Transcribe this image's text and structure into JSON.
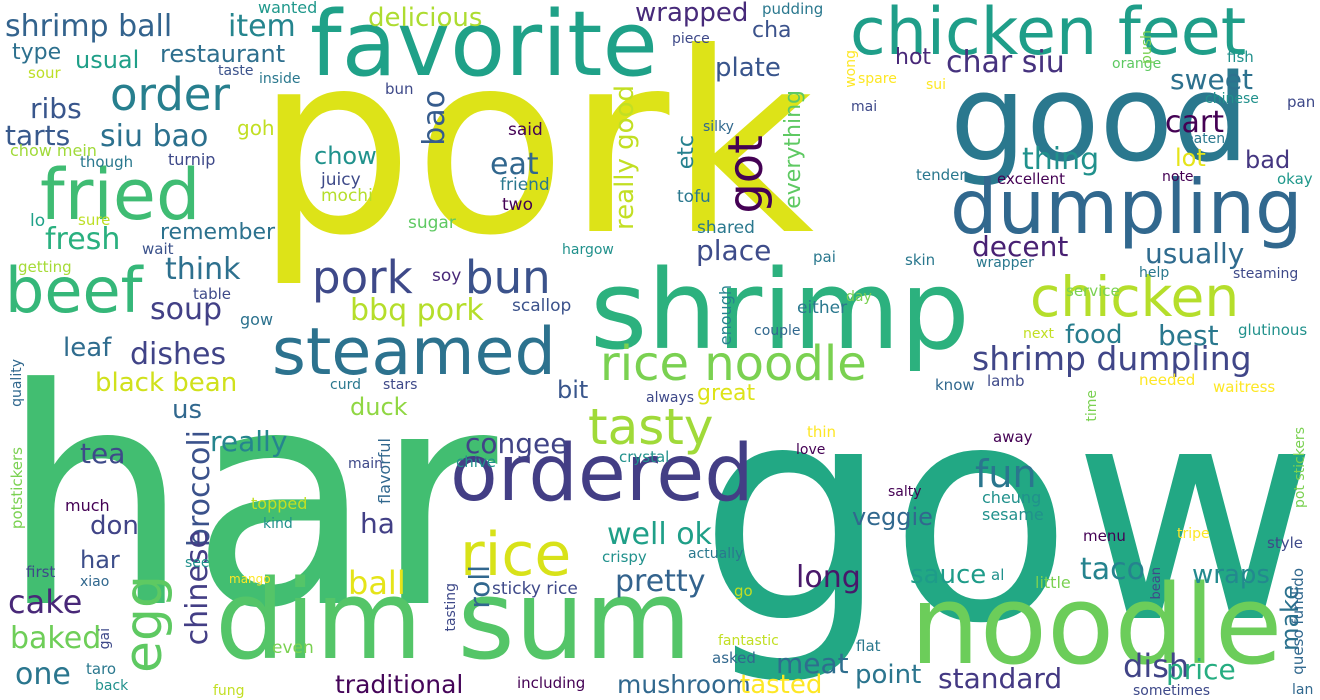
{
  "words": [
    {
      "text": "har",
      "color": "#42be71"
    },
    {
      "text": "gow",
      "color": "#22a884"
    },
    {
      "text": "pork",
      "color": "#dde318"
    },
    {
      "text": "shrimp",
      "color": "#2cb17e"
    },
    {
      "text": "good",
      "color": "#2a788e"
    },
    {
      "text": "dim sum",
      "color": "#54c568"
    },
    {
      "text": "noodle",
      "color": "#6ccd5a"
    },
    {
      "text": "favorite",
      "color": "#1fa188"
    },
    {
      "text": "chicken feet",
      "color": "#1f9e89"
    },
    {
      "text": "dumpling",
      "color": "#31688e"
    },
    {
      "text": "ordered",
      "color": "#433e85"
    },
    {
      "text": "steamed",
      "color": "#2c728e"
    },
    {
      "text": "fried",
      "color": "#3fbc73"
    },
    {
      "text": "chicken",
      "color": "#b5de2b"
    },
    {
      "text": "rice",
      "color": "#d8e219"
    },
    {
      "text": "beef",
      "color": "#35b779"
    },
    {
      "text": "rice noodle",
      "color": "#7ad151"
    },
    {
      "text": "tasty",
      "color": "#a0da39"
    },
    {
      "text": "order",
      "color": "#277f8e"
    },
    {
      "text": "egg",
      "color": "#5ec962"
    },
    {
      "text": "bun",
      "color": "#3b528b"
    },
    {
      "text": "pork",
      "color": "#3e4989"
    },
    {
      "text": "got",
      "color": "#440154"
    },
    {
      "text": "shrimp dumpling",
      "color": "#404688"
    },
    {
      "text": "fun",
      "color": "#2a768e"
    },
    {
      "text": "shrimp ball",
      "color": "#33638d"
    },
    {
      "text": "item",
      "color": "#25858e"
    },
    {
      "text": "siu bao",
      "color": "#2c718e"
    },
    {
      "text": "char siu",
      "color": "#46327e"
    },
    {
      "text": "fresh",
      "color": "#2ab07f"
    },
    {
      "text": "bao",
      "color": "#365c8d"
    },
    {
      "text": "soup",
      "color": "#424086"
    },
    {
      "text": "dishes",
      "color": "#404387"
    },
    {
      "text": "think",
      "color": "#2d708e"
    },
    {
      "text": "ribs",
      "color": "#39568c"
    },
    {
      "text": "tarts",
      "color": "#38598c"
    },
    {
      "text": "cart",
      "color": "#440154"
    },
    {
      "text": "thing",
      "color": "#21918c"
    },
    {
      "text": "sweet",
      "color": "#2d718e"
    },
    {
      "text": "plate",
      "color": "#39558c"
    },
    {
      "text": "wrapped",
      "color": "#472a7a"
    },
    {
      "text": "delicious",
      "color": "#addc30"
    },
    {
      "text": "restaurant",
      "color": "#2e6f8e"
    },
    {
      "text": "usual",
      "color": "#1f9f88"
    },
    {
      "text": "type",
      "color": "#2d708e"
    },
    {
      "text": "eat",
      "color": "#31678e"
    },
    {
      "text": "really good",
      "color": "#c2df23"
    },
    {
      "text": "bbq pork",
      "color": "#b5de2b"
    },
    {
      "text": "chow",
      "color": "#20928c"
    },
    {
      "text": "place",
      "color": "#3e4c8a"
    },
    {
      "text": "usually",
      "color": "#2f6b8e"
    },
    {
      "text": "decent",
      "color": "#482173"
    },
    {
      "text": "bad",
      "color": "#453781"
    },
    {
      "text": "lot",
      "color": "#e5e419"
    },
    {
      "text": "everything",
      "color": "#5ec962"
    },
    {
      "text": "etc",
      "color": "#26818e"
    },
    {
      "text": "congee",
      "color": "#414487"
    },
    {
      "text": "well ok",
      "color": "#1f9f88"
    },
    {
      "text": "pretty",
      "color": "#33638d"
    },
    {
      "text": "long",
      "color": "#48186a"
    },
    {
      "text": "taco",
      "color": "#25838e"
    },
    {
      "text": "broccoli",
      "color": "#3b528b"
    },
    {
      "text": "chinese",
      "color": "#433e85"
    },
    {
      "text": "tea",
      "color": "#3e4a89"
    },
    {
      "text": "really",
      "color": "#25858e"
    },
    {
      "text": "roll",
      "color": "#31678e"
    },
    {
      "text": "ball",
      "color": "#e5e419"
    },
    {
      "text": "ha",
      "color": "#424086"
    },
    {
      "text": "meat",
      "color": "#2e6e8e"
    },
    {
      "text": "sauce",
      "color": "#1e9c89"
    },
    {
      "text": "wraps",
      "color": "#23898e"
    },
    {
      "text": "dish",
      "color": "#414487"
    },
    {
      "text": "standard",
      "color": "#443983"
    },
    {
      "text": "price",
      "color": "#26ad81"
    },
    {
      "text": "point",
      "color": "#2b758e"
    },
    {
      "text": "traditional",
      "color": "#450559"
    },
    {
      "text": "mushroom",
      "color": "#31688e"
    },
    {
      "text": "tasted",
      "color": "#fde725"
    },
    {
      "text": "cake",
      "color": "#482878"
    },
    {
      "text": "baked",
      "color": "#6ece58"
    },
    {
      "text": "one",
      "color": "#2a768e"
    },
    {
      "text": "don",
      "color": "#414487"
    },
    {
      "text": "har",
      "color": "#3d4e8a"
    },
    {
      "text": "us",
      "color": "#31688e"
    },
    {
      "text": "leaf",
      "color": "#2f6c8e"
    },
    {
      "text": "black bean",
      "color": "#d0e11c"
    },
    {
      "text": "duck",
      "color": "#90d743"
    },
    {
      "text": "veggie",
      "color": "#31688e"
    },
    {
      "text": "make",
      "color": "#2c728e"
    },
    {
      "text": "best",
      "color": "#2a788e"
    },
    {
      "text": "food",
      "color": "#287d8e"
    },
    {
      "text": "hot",
      "color": "#482878"
    },
    {
      "text": "cha",
      "color": "#3b528b"
    },
    {
      "text": "goh",
      "color": "#c2df23"
    },
    {
      "text": "remember",
      "color": "#2c728e"
    },
    {
      "text": "great",
      "color": "#dde318"
    },
    {
      "text": "bit",
      "color": "#39568c"
    },
    {
      "text": "either",
      "color": "#2a788e"
    },
    {
      "text": "enough",
      "color": "#26828e"
    },
    {
      "text": "scallop",
      "color": "#3b528b"
    },
    {
      "text": "soy",
      "color": "#482878"
    },
    {
      "text": "tofu",
      "color": "#2a788e"
    },
    {
      "text": "shared",
      "color": "#2a788e"
    },
    {
      "text": "juicy",
      "color": "#3e4a89"
    },
    {
      "text": "mochi",
      "color": "#b5de2b"
    },
    {
      "text": "friend",
      "color": "#2a788e"
    },
    {
      "text": "two",
      "color": "#440154"
    },
    {
      "text": "said",
      "color": "#440154"
    },
    {
      "text": "sugar",
      "color": "#5ec962"
    },
    {
      "text": "bun",
      "color": "#3e4989"
    },
    {
      "text": "turnip",
      "color": "#3e4989"
    },
    {
      "text": "though",
      "color": "#2a788e"
    },
    {
      "text": "chow mein",
      "color": "#a0da39"
    },
    {
      "text": "sure",
      "color": "#bddf26"
    },
    {
      "text": "lo",
      "color": "#1fa188"
    },
    {
      "text": "wait",
      "color": "#3b528b"
    },
    {
      "text": "getting",
      "color": "#a5db36"
    },
    {
      "text": "table",
      "color": "#3e4a89"
    },
    {
      "text": "gow",
      "color": "#2c728e"
    },
    {
      "text": "sour",
      "color": "#bddf26"
    },
    {
      "text": "taste",
      "color": "#3b528b"
    },
    {
      "text": "inside",
      "color": "#2a788e"
    },
    {
      "text": "wanted",
      "color": "#1f988b"
    },
    {
      "text": "piece",
      "color": "#3e4989"
    },
    {
      "text": "pudding",
      "color": "#2a788e"
    },
    {
      "text": "wong",
      "color": "#fde725"
    },
    {
      "text": "spare",
      "color": "#fde725"
    },
    {
      "text": "sui",
      "color": "#fde725"
    },
    {
      "text": "mai",
      "color": "#3e4989"
    },
    {
      "text": "silky",
      "color": "#31688e"
    },
    {
      "text": "tender",
      "color": "#2a788e"
    },
    {
      "text": "excellent",
      "color": "#440154"
    },
    {
      "text": "note",
      "color": "#440154"
    },
    {
      "text": "okay",
      "color": "#1f988b"
    },
    {
      "text": "eaten",
      "color": "#2a788e"
    },
    {
      "text": "chinese",
      "color": "#21918c"
    },
    {
      "text": "pan",
      "color": "#3e4989"
    },
    {
      "text": "fish",
      "color": "#21918c"
    },
    {
      "text": "orange",
      "color": "#5ec962"
    },
    {
      "text": "push",
      "color": "#7ad151"
    },
    {
      "text": "hargow",
      "color": "#21918c"
    },
    {
      "text": "pai",
      "color": "#2a788e"
    },
    {
      "text": "day",
      "color": "#7ad151"
    },
    {
      "text": "skin",
      "color": "#2a788e"
    },
    {
      "text": "wrapper",
      "color": "#2a788e"
    },
    {
      "text": "service",
      "color": "#7ad151"
    },
    {
      "text": "help",
      "color": "#2a788e"
    },
    {
      "text": "steaming",
      "color": "#3e4989"
    },
    {
      "text": "couple",
      "color": "#31688e"
    },
    {
      "text": "next",
      "color": "#c2df23"
    },
    {
      "text": "glutinous",
      "color": "#21918c"
    },
    {
      "text": "know",
      "color": "#31688e"
    },
    {
      "text": "lamb",
      "color": "#3e4989"
    },
    {
      "text": "needed",
      "color": "#fde725"
    },
    {
      "text": "waitress",
      "color": "#fde725"
    },
    {
      "text": "time",
      "color": "#7ad151"
    },
    {
      "text": "stars",
      "color": "#3e4989"
    },
    {
      "text": "curd",
      "color": "#2a788e"
    },
    {
      "text": "always",
      "color": "#3e4989"
    },
    {
      "text": "thin",
      "color": "#fde725"
    },
    {
      "text": "love",
      "color": "#440154"
    },
    {
      "text": "away",
      "color": "#440154"
    },
    {
      "text": "crystal",
      "color": "#21918c"
    },
    {
      "text": "chive",
      "color": "#21918c"
    },
    {
      "text": "main",
      "color": "#3e4989"
    },
    {
      "text": "flavorful",
      "color": "#31688e"
    },
    {
      "text": "salty",
      "color": "#440154"
    },
    {
      "text": "cheung",
      "color": "#21918c"
    },
    {
      "text": "sesame",
      "color": "#21918c"
    },
    {
      "text": "menu",
      "color": "#440154"
    },
    {
      "text": "tripe",
      "color": "#fde725"
    },
    {
      "text": "style",
      "color": "#3e4989"
    },
    {
      "text": "pot stickers",
      "color": "#7ad151"
    },
    {
      "text": "queso fundido",
      "color": "#31688e"
    },
    {
      "text": "potstickers",
      "color": "#7ad151"
    },
    {
      "text": "quality",
      "color": "#31688e"
    },
    {
      "text": "topped",
      "color": "#c2df23"
    },
    {
      "text": "kind",
      "color": "#21918c"
    },
    {
      "text": "much",
      "color": "#440154"
    },
    {
      "text": "mango",
      "color": "#fde725"
    },
    {
      "text": "crispy",
      "color": "#21918c"
    },
    {
      "text": "actually",
      "color": "#2a788e"
    },
    {
      "text": "first",
      "color": "#3e4989"
    },
    {
      "text": "xiao",
      "color": "#31688e"
    },
    {
      "text": "see",
      "color": "#21918c"
    },
    {
      "text": "tasting",
      "color": "#3e4989"
    },
    {
      "text": "sticky rice",
      "color": "#3e4989"
    },
    {
      "text": "go",
      "color": "#c2df23"
    },
    {
      "text": "al",
      "color": "#21918c"
    },
    {
      "text": "little",
      "color": "#7ad151"
    },
    {
      "text": "bean",
      "color": "#3e4989"
    },
    {
      "text": "fantastic",
      "color": "#c2df23"
    },
    {
      "text": "asked",
      "color": "#31688e"
    },
    {
      "text": "flat",
      "color": "#2a788e"
    },
    {
      "text": "even",
      "color": "#7ad151"
    },
    {
      "text": "gai",
      "color": "#3e4989"
    },
    {
      "text": "taro",
      "color": "#2a788e"
    },
    {
      "text": "back",
      "color": "#21918c"
    },
    {
      "text": "fung",
      "color": "#c2df23"
    },
    {
      "text": "including",
      "color": "#440154"
    },
    {
      "text": "sometimes",
      "color": "#3e4989"
    },
    {
      "text": "lan",
      "color": "#31688e"
    }
  ]
}
